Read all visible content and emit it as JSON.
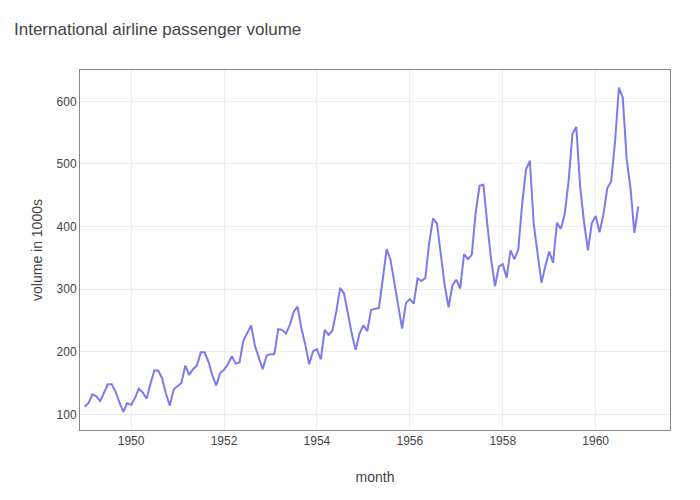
{
  "chart_data": {
    "type": "line",
    "title": "International airline passenger volume",
    "xlabel": "month",
    "ylabel": "volume in 1000s",
    "color": "#7b7bef",
    "x": [
      1949,
      1949.0833333333333,
      1949.1666666666667,
      1949.25,
      1949.3333333333333,
      1949.4166666666667,
      1949.5,
      1949.5833333333333,
      1949.6666666666667,
      1949.75,
      1949.8333333333333,
      1949.9166666666667,
      1950,
      1950.0833333333333,
      1950.1666666666667,
      1950.25,
      1950.3333333333333,
      1950.4166666666667,
      1950.5,
      1950.5833333333333,
      1950.6666666666667,
      1950.75,
      1950.8333333333333,
      1950.9166666666667,
      1951,
      1951.0833333333333,
      1951.1666666666667,
      1951.25,
      1951.3333333333333,
      1951.4166666666667,
      1951.5,
      1951.5833333333333,
      1951.6666666666667,
      1951.75,
      1951.8333333333333,
      1951.9166666666667,
      1952,
      1952.0833333333333,
      1952.1666666666667,
      1952.25,
      1952.3333333333333,
      1952.4166666666667,
      1952.5,
      1952.5833333333333,
      1952.6666666666667,
      1952.75,
      1952.8333333333333,
      1952.9166666666667,
      1953,
      1953.0833333333333,
      1953.1666666666667,
      1953.25,
      1953.3333333333333,
      1953.4166666666667,
      1953.5,
      1953.5833333333333,
      1953.6666666666667,
      1953.75,
      1953.8333333333333,
      1953.9166666666667,
      1954,
      1954.0833333333333,
      1954.1666666666667,
      1954.25,
      1954.3333333333333,
      1954.4166666666667,
      1954.5,
      1954.5833333333333,
      1954.6666666666667,
      1954.75,
      1954.8333333333333,
      1954.9166666666667,
      1955,
      1955.0833333333333,
      1955.1666666666667,
      1955.25,
      1955.3333333333333,
      1955.4166666666667,
      1955.5,
      1955.5833333333333,
      1955.6666666666667,
      1955.75,
      1955.8333333333333,
      1955.9166666666667,
      1956,
      1956.0833333333333,
      1956.1666666666667,
      1956.25,
      1956.3333333333333,
      1956.4166666666667,
      1956.5,
      1956.5833333333333,
      1956.6666666666667,
      1956.75,
      1956.8333333333333,
      1956.9166666666667,
      1957,
      1957.0833333333333,
      1957.1666666666667,
      1957.25,
      1957.3333333333333,
      1957.4166666666667,
      1957.5,
      1957.5833333333333,
      1957.6666666666667,
      1957.75,
      1957.8333333333333,
      1957.9166666666667,
      1958,
      1958.0833333333333,
      1958.1666666666667,
      1958.25,
      1958.3333333333333,
      1958.4166666666667,
      1958.5,
      1958.5833333333333,
      1958.6666666666667,
      1958.75,
      1958.8333333333333,
      1958.9166666666667,
      1959,
      1959.0833333333333,
      1959.1666666666667,
      1959.25,
      1959.3333333333333,
      1959.4166666666667,
      1959.5,
      1959.5833333333333,
      1959.6666666666667,
      1959.75,
      1959.8333333333333,
      1959.9166666666667,
      1960,
      1960.0833333333333,
      1960.1666666666667,
      1960.25,
      1960.3333333333333,
      1960.4166666666667,
      1960.5,
      1960.5833333333333,
      1960.6666666666667,
      1960.75,
      1960.8333333333333,
      1960.9166666666667
    ],
    "values": [
      112,
      118,
      132,
      129,
      121,
      135,
      148,
      148,
      136,
      119,
      104,
      118,
      115,
      126,
      141,
      135,
      125,
      149,
      170,
      170,
      158,
      133,
      114,
      140,
      145,
      150,
      178,
      163,
      172,
      178,
      199,
      199,
      184,
      162,
      146,
      166,
      171,
      180,
      193,
      181,
      183,
      218,
      230,
      242,
      209,
      191,
      172,
      194,
      196,
      196,
      236,
      235,
      229,
      243,
      264,
      272,
      237,
      211,
      180,
      201,
      204,
      188,
      235,
      227,
      234,
      264,
      302,
      293,
      259,
      229,
      203,
      229,
      242,
      233,
      267,
      269,
      270,
      315,
      364,
      347,
      312,
      274,
      237,
      278,
      284,
      277,
      317,
      313,
      318,
      374,
      413,
      405,
      355,
      306,
      271,
      306,
      315,
      301,
      356,
      348,
      355,
      422,
      465,
      467,
      404,
      347,
      305,
      336,
      340,
      318,
      362,
      348,
      363,
      435,
      491,
      505,
      404,
      359,
      310,
      337,
      360,
      342,
      406,
      396,
      420,
      472,
      548,
      559,
      463,
      407,
      362,
      405,
      417,
      391,
      419,
      461,
      472,
      535,
      622,
      606,
      508,
      461,
      390,
      432
    ],
    "xlim": [
      1948.9,
      1961.6
    ],
    "ylim": [
      75,
      650
    ],
    "xticks": [
      1950,
      1952,
      1954,
      1956,
      1958,
      1960
    ],
    "yticks": [
      100,
      200,
      300,
      400,
      500,
      600
    ],
    "grid": true
  }
}
